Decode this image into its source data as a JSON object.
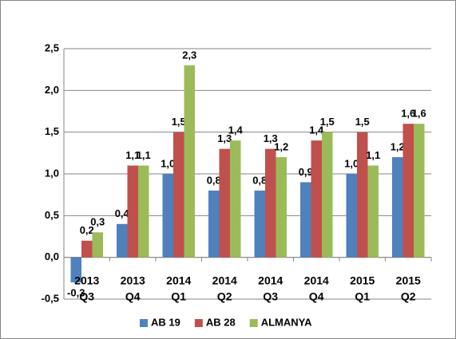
{
  "chart_data": {
    "type": "bar",
    "categories": [
      [
        "2013",
        "Q3"
      ],
      [
        "2013",
        "Q4"
      ],
      [
        "2014",
        "Q1"
      ],
      [
        "2014",
        "Q2"
      ],
      [
        "2014",
        "Q3"
      ],
      [
        "2014",
        "Q4"
      ],
      [
        "2015",
        "Q1"
      ],
      [
        "2015",
        "Q2"
      ]
    ],
    "series": [
      {
        "name": "AB 19",
        "color": "#4f81bd",
        "values": [
          -0.3,
          0.4,
          1.0,
          0.8,
          0.8,
          0.9,
          1.0,
          1.2
        ],
        "value_labels": [
          "-0,3",
          "0,4",
          "1,0",
          "0,8",
          "0,8",
          "0,9",
          "1,0",
          "1,2"
        ]
      },
      {
        "name": "AB 28",
        "color": "#c0504d",
        "values": [
          0.2,
          1.1,
          1.5,
          1.3,
          1.3,
          1.4,
          1.5,
          1.6
        ],
        "value_labels": [
          "0,2",
          "1,1",
          "1,5",
          "1,3",
          "1,3",
          "1,4",
          "1,5",
          "1,6"
        ]
      },
      {
        "name": "ALMANYA",
        "color": "#9bbb59",
        "values": [
          0.3,
          1.1,
          2.3,
          1.4,
          1.2,
          1.5,
          1.1,
          1.6
        ],
        "value_labels": [
          "0,3",
          "1,1",
          "2,3",
          "1,4",
          "1,2",
          "1,5",
          "1,1",
          "1,6"
        ]
      }
    ],
    "ylim": [
      -0.5,
      2.5
    ],
    "yticks": [
      {
        "value": -0.5,
        "label": "-0,5"
      },
      {
        "value": 0,
        "label": "0,0"
      },
      {
        "value": 0.5,
        "label": "0,5"
      },
      {
        "value": 1,
        "label": "1,0"
      },
      {
        "value": 1.5,
        "label": "1,5"
      },
      {
        "value": 2,
        "label": "2,0"
      },
      {
        "value": 2.5,
        "label": "2,5"
      }
    ],
    "grid": true,
    "legend": "bottom"
  }
}
